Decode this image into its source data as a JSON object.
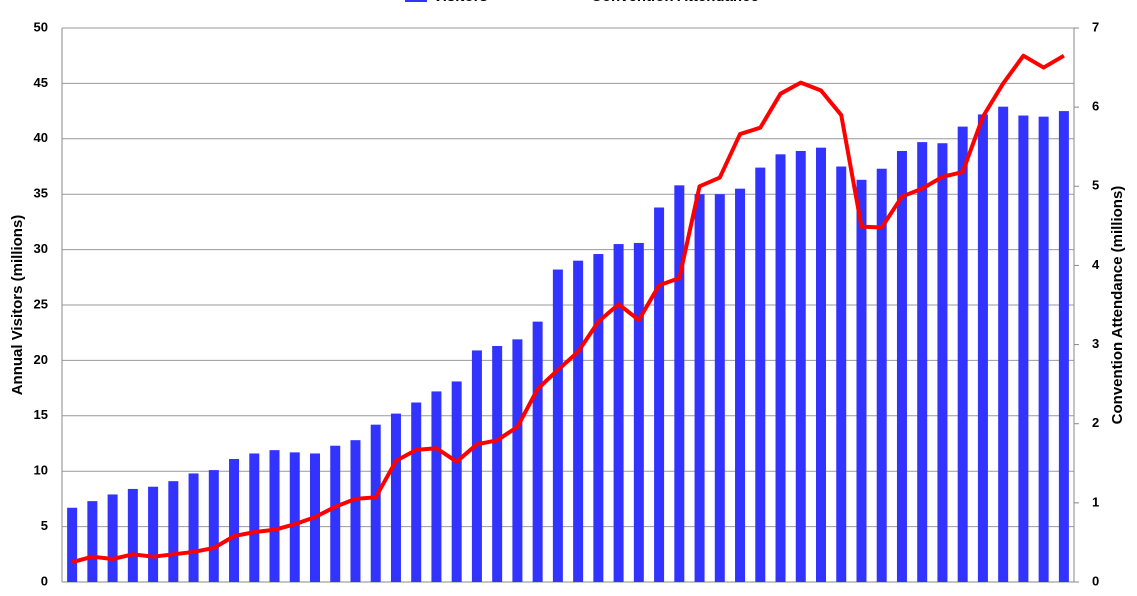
{
  "chart_data": {
    "type": "bar-line",
    "categories": [
      null,
      null,
      null,
      null,
      null,
      null,
      null,
      null,
      null,
      null,
      null,
      null,
      null,
      null,
      null,
      null,
      null,
      null,
      null,
      null,
      null,
      null,
      null,
      null,
      null,
      null,
      null,
      null,
      null,
      null,
      null,
      null,
      null,
      null,
      null,
      null,
      null,
      null,
      null,
      null,
      null,
      null,
      null,
      null,
      null,
      null,
      null,
      null,
      null,
      null
    ],
    "y_label": "Annual Visitors (millions)",
    "y2_label": "Convention Attendance (millions)",
    "ylim": [
      0,
      50
    ],
    "yticks": [
      0,
      5,
      10,
      15,
      20,
      25,
      30,
      35,
      40,
      45,
      50
    ],
    "y2lim": [
      0,
      7
    ],
    "y2ticks": [
      0,
      1,
      2,
      3,
      4,
      5,
      6,
      7
    ],
    "grid": true,
    "series": [
      {
        "name": "Visitors",
        "color": "#3333ff",
        "kind": "bar",
        "values": [
          6.7,
          7.3,
          7.9,
          8.4,
          8.6,
          9.1,
          9.8,
          10.1,
          11.1,
          11.6,
          11.9,
          11.7,
          11.6,
          12.3,
          12.8,
          14.2,
          15.2,
          16.2,
          17.2,
          18.1,
          20.9,
          21.3,
          21.9,
          23.5,
          28.2,
          29.0,
          29.6,
          30.5,
          30.6,
          33.8,
          35.8,
          35.0,
          35.0,
          35.5,
          37.4,
          38.6,
          38.9,
          39.2,
          37.5,
          36.3,
          37.3,
          38.9,
          39.7,
          39.6,
          41.1,
          42.2,
          42.9,
          42.1,
          42.0,
          42.5
        ]
      },
      {
        "name": "Convention Attendance",
        "color": "#ff0000",
        "kind": "line",
        "axis": "y2",
        "values": [
          0.25,
          0.32,
          0.29,
          0.35,
          0.32,
          0.35,
          0.38,
          0.43,
          0.58,
          0.63,
          0.66,
          0.73,
          0.82,
          0.95,
          1.05,
          1.07,
          1.53,
          1.67,
          1.69,
          1.52,
          1.74,
          1.79,
          1.96,
          2.44,
          2.68,
          2.91,
          3.29,
          3.51,
          3.31,
          3.75,
          3.84,
          5.0,
          5.11,
          5.66,
          5.74,
          6.17,
          6.31,
          6.21,
          5.9,
          4.49,
          4.48,
          4.87,
          4.97,
          5.12,
          5.18,
          5.88,
          6.3,
          6.65,
          6.5,
          6.65
        ]
      }
    ]
  }
}
